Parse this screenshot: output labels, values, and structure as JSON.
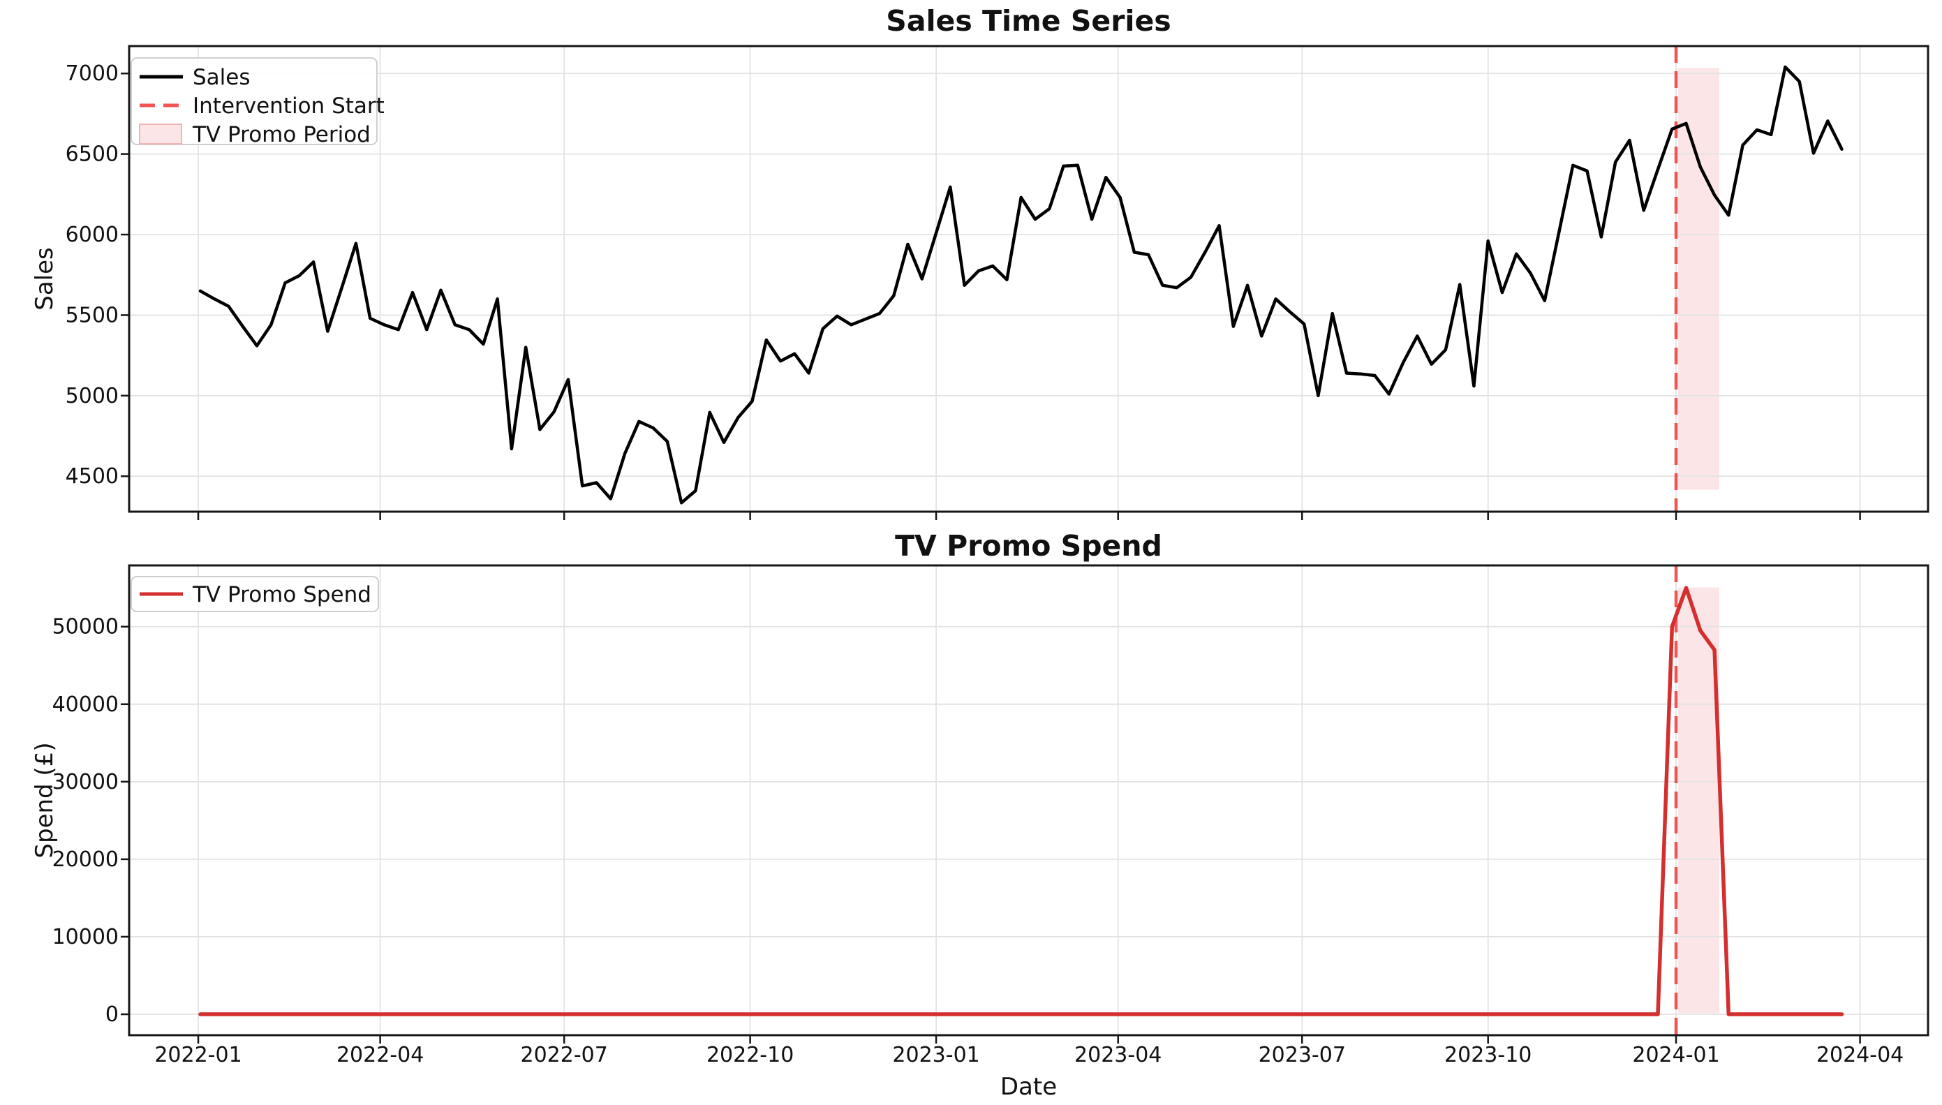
{
  "page": {
    "title": "Sales Time Series"
  },
  "colors": {
    "sales_line": "#000000",
    "intervention_line": "#f15455",
    "promo_band_fill": "#fce5e6",
    "promo_band_edge": "#f2b5b6",
    "spend_line": "#d42f2f",
    "grid": "#e3e3e3",
    "spine": "#161616",
    "legend_border": "#cfcfcf",
    "background": "#ffffff"
  },
  "chart_data": [
    {
      "type": "line",
      "title": "Sales Time Series",
      "ylabel": "Sales",
      "xlabel": "",
      "grid": true,
      "legend_position": "upper left",
      "x_start_date": "2022-01-02",
      "x_step_days": 7,
      "xlim_days": [
        -34,
        856
      ],
      "ylim": [
        4280,
        7170
      ],
      "y_ticks": [
        4500,
        5000,
        5500,
        6000,
        6500,
        7000
      ],
      "x_tick_days": [
        0,
        90,
        181,
        273,
        365,
        455,
        546,
        638,
        731,
        822
      ],
      "x_tick_labels": [
        "2022-01",
        "2022-04",
        "2022-07",
        "2022-10",
        "2023-01",
        "2023-04",
        "2023-07",
        "2023-10",
        "2024-01",
        "2024-04"
      ],
      "series": [
        {
          "name": "Sales",
          "color": "#000000",
          "style": "solid",
          "values": [
            5650,
            5600,
            5555,
            5430,
            5310,
            5440,
            5700,
            5745,
            5830,
            5400,
            5670,
            5945,
            5480,
            5440,
            5410,
            5640,
            5410,
            5655,
            5440,
            5410,
            5320,
            5600,
            4670,
            5300,
            4790,
            4900,
            5100,
            4440,
            4460,
            4360,
            4640,
            4840,
            4800,
            4716,
            4335,
            4410,
            4896,
            4710,
            4864,
            4965,
            5346,
            5215,
            5260,
            5140,
            5416,
            5494,
            5440,
            5475,
            5510,
            5620,
            5940,
            5725,
            6010,
            6295,
            5685,
            5775,
            5805,
            5720,
            6230,
            6095,
            6160,
            6425,
            6430,
            6095,
            6355,
            6230,
            5890,
            5875,
            5685,
            5670,
            5735,
            5890,
            6055,
            5430,
            5685,
            5370,
            5600,
            5520,
            5445,
            5000,
            5510,
            5140,
            5135,
            5125,
            5010,
            5205,
            5370,
            5195,
            5285,
            5690,
            5060,
            5960,
            5640,
            5880,
            5760,
            5590,
            6010,
            6430,
            6395,
            5985,
            6450,
            6585,
            6150,
            6405,
            6655,
            6690,
            6420,
            6245,
            6120,
            6555,
            6650,
            6620,
            7040,
            6950,
            6505,
            6705,
            6530
          ]
        }
      ],
      "annotations": {
        "intervention_day": 731,
        "intervention_date": "2024-01-01",
        "promo_band_days": [
          732,
          752.3
        ],
        "promo_band_dates": [
          "2024-01-02",
          "2024-01-22"
        ]
      },
      "legend": [
        {
          "label": "Sales",
          "type": "line",
          "color": "#000000"
        },
        {
          "label": "Intervention Start",
          "type": "dashed",
          "color": "#f15455"
        },
        {
          "label": "TV Promo Period",
          "type": "patch",
          "color": "#fce5e6",
          "edge": "#f2b5b6"
        }
      ]
    },
    {
      "type": "line",
      "title": "TV Promo Spend",
      "ylabel": "Spend (£)",
      "xlabel": "Date",
      "grid": true,
      "legend_position": "upper left",
      "x_start_date": "2022-01-02",
      "x_step_days": 7,
      "xlim_days": [
        -34,
        856
      ],
      "ylim": [
        -2700,
        57900
      ],
      "y_ticks": [
        0,
        10000,
        20000,
        30000,
        40000,
        50000
      ],
      "x_tick_days": [
        0,
        90,
        181,
        273,
        365,
        455,
        546,
        638,
        731,
        822
      ],
      "x_tick_labels": [
        "2022-01",
        "2022-04",
        "2022-07",
        "2022-10",
        "2023-01",
        "2023-04",
        "2023-07",
        "2023-10",
        "2024-01",
        "2024-04"
      ],
      "series": [
        {
          "name": "TV Promo Spend",
          "color": "#d42f2f",
          "style": "solid",
          "values": [
            0,
            0,
            0,
            0,
            0,
            0,
            0,
            0,
            0,
            0,
            0,
            0,
            0,
            0,
            0,
            0,
            0,
            0,
            0,
            0,
            0,
            0,
            0,
            0,
            0,
            0,
            0,
            0,
            0,
            0,
            0,
            0,
            0,
            0,
            0,
            0,
            0,
            0,
            0,
            0,
            0,
            0,
            0,
            0,
            0,
            0,
            0,
            0,
            0,
            0,
            0,
            0,
            0,
            0,
            0,
            0,
            0,
            0,
            0,
            0,
            0,
            0,
            0,
            0,
            0,
            0,
            0,
            0,
            0,
            0,
            0,
            0,
            0,
            0,
            0,
            0,
            0,
            0,
            0,
            0,
            0,
            0,
            0,
            0,
            0,
            0,
            0,
            0,
            0,
            0,
            0,
            0,
            0,
            0,
            0,
            0,
            0,
            0,
            0,
            0,
            0,
            0,
            0,
            0,
            50000,
            55000,
            49500,
            47000,
            0,
            0,
            0,
            0,
            0,
            0,
            0,
            0,
            0
          ]
        }
      ],
      "annotations": {
        "intervention_day": 731,
        "intervention_date": "2024-01-01",
        "promo_band_days": [
          732,
          752.3
        ],
        "promo_band_dates": [
          "2024-01-02",
          "2024-01-22"
        ]
      },
      "legend": [
        {
          "label": "TV Promo Spend",
          "type": "line",
          "color": "#d42f2f"
        }
      ]
    }
  ]
}
